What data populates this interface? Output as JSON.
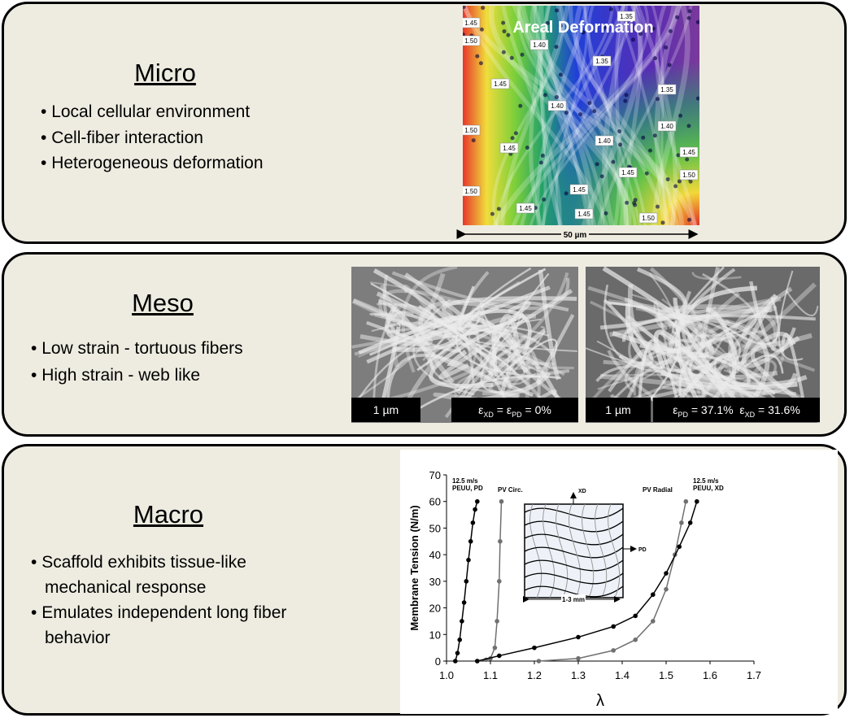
{
  "panels": [
    {
      "title": "Micro",
      "bullets": [
        "Local cellular environment",
        "Cell-fiber interaction",
        "Heterogeneous deformation"
      ]
    },
    {
      "title": "Meso",
      "bullets": [
        "Low strain - tortuous fibers",
        "High strain - web like"
      ]
    },
    {
      "title": "Macro",
      "bullets": [
        "Scaffold exhibits tissue-like mechanical response",
        "Emulates independent long fiber behavior"
      ]
    }
  ],
  "micro_image": {
    "title": "Areal Deformation",
    "contour_labels": [
      "1.45",
      "1.35",
      "1.50",
      "1.40",
      "1.35",
      "1.45",
      "1.35",
      "1.40",
      "1.40",
      "1.50",
      "1.40",
      "1.45",
      "1.45",
      "1.45",
      "1.50",
      "1.45",
      "1.50",
      "1.45",
      "1.45",
      "1.50"
    ],
    "scale_bar": "50 µm"
  },
  "meso_images": [
    {
      "scale_bar": "1 µm",
      "strain_label": [
        "ε",
        "XD",
        " = ε",
        "PD",
        " = 0%"
      ]
    },
    {
      "scale_bar": "1 µm",
      "strain_label": [
        "ε",
        "PD",
        " = 37.1%  ε",
        "XD",
        " = 31.6%"
      ]
    }
  ],
  "chart_data": {
    "type": "line",
    "xlabel": "λ",
    "ylabel": "Membrane Tension (N/m)",
    "xlim": [
      1.0,
      1.7
    ],
    "xticks": [
      {
        "value": 1.0,
        "label": "1.0"
      },
      1.1,
      1.2,
      1.3,
      1.4,
      1.5,
      1.6,
      1.7
    ],
    "ylim": [
      0,
      70
    ],
    "yticks": [
      0,
      10,
      20,
      30,
      40,
      50,
      60,
      70
    ],
    "series": [
      {
        "name": "12.5 m/s PEUU, PD",
        "color": "#000000",
        "x": [
          1.02,
          1.025,
          1.03,
          1.035,
          1.04,
          1.045,
          1.05,
          1.055,
          1.06,
          1.065,
          1.07
        ],
        "values": [
          0,
          3,
          8,
          15,
          22,
          30,
          38,
          45,
          52,
          57,
          60
        ]
      },
      {
        "name": "PV Circ.",
        "color": "#707070",
        "x": [
          1.07,
          1.09,
          1.1,
          1.11,
          1.115,
          1.12,
          1.122,
          1.125
        ],
        "values": [
          0,
          0.5,
          1,
          5,
          15,
          30,
          45,
          60
        ]
      },
      {
        "name": "PV Radial",
        "color": "#707070",
        "x": [
          1.21,
          1.3,
          1.38,
          1.43,
          1.47,
          1.5,
          1.52,
          1.535,
          1.545
        ],
        "values": [
          0,
          1,
          4,
          8,
          15,
          27,
          40,
          52,
          60
        ]
      },
      {
        "name": "12.5 m/s PEUU, XD",
        "color": "#000000",
        "x": [
          1.07,
          1.12,
          1.2,
          1.3,
          1.38,
          1.43,
          1.47,
          1.5,
          1.53,
          1.555,
          1.57
        ],
        "values": [
          0,
          2,
          5,
          9,
          13,
          17,
          25,
          33,
          43,
          52,
          60
        ]
      }
    ],
    "inset": {
      "labels": [
        "XD",
        "PD",
        "1-3 mm"
      ]
    }
  }
}
